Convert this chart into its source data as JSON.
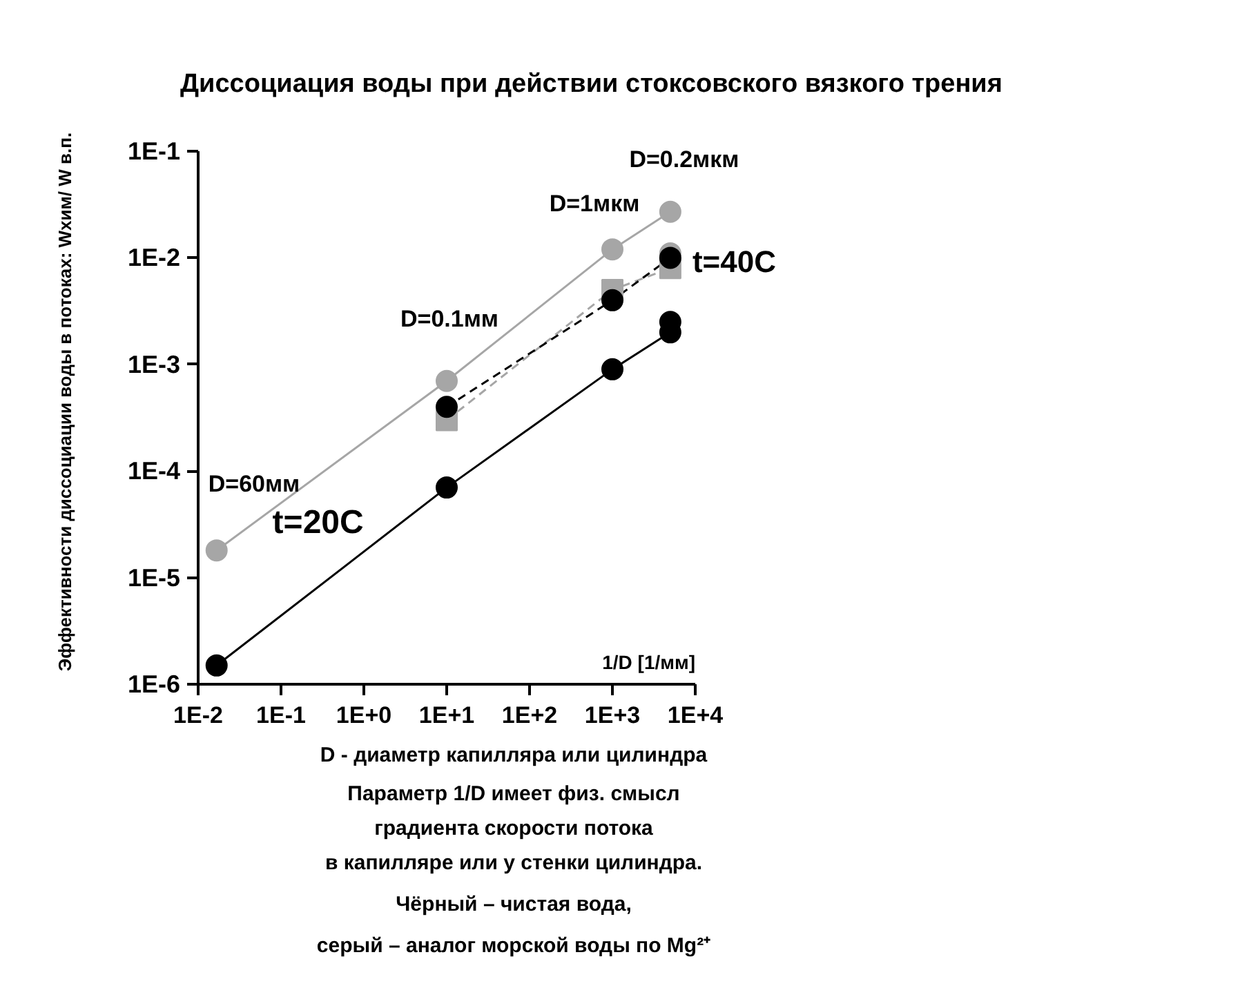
{
  "chart_data": {
    "type": "line",
    "title": "Диссоциация воды при действии стоксовского вязкого трения",
    "xlabel": "1/D [1/мм]",
    "ylabel": "Эффективности диссоциации воды в потоках: Wхим/ W в.п.",
    "log": "xy",
    "grid": false,
    "marker": "circle",
    "line_style": "solid",
    "xlim": [
      0.01,
      10000
    ],
    "ylim": [
      1e-06,
      0.1
    ],
    "xticks": [
      {
        "value": 0.01,
        "label": "1E-2"
      },
      {
        "value": 0.1,
        "label": "1E-1"
      },
      {
        "value": 1,
        "label": "1E+0"
      },
      {
        "value": 10,
        "label": "1E+1"
      },
      {
        "value": 100,
        "label": "1E+2"
      },
      {
        "value": 1000,
        "label": "1E+3"
      },
      {
        "value": 10000,
        "label": "1E+4"
      }
    ],
    "yticks": [
      {
        "value": 1e-06,
        "label": "1E-6"
      },
      {
        "value": 1e-05,
        "label": "1E-5"
      },
      {
        "value": 0.0001,
        "label": "1E-4"
      },
      {
        "value": 0.001,
        "label": "1E-3"
      },
      {
        "value": 0.01,
        "label": "1E-2"
      },
      {
        "value": 0.1,
        "label": "1E-1"
      }
    ],
    "series": [
      {
        "color": "#a6a6a6",
        "x": [
          0.0167,
          10,
          1000,
          5000
        ],
        "values": [
          1.8e-05,
          0.0007,
          0.012,
          0.027
        ]
      },
      {
        "color": "#000000",
        "x": [
          0.0167,
          10,
          1000,
          5000
        ],
        "values": [
          1.5e-06,
          7e-05,
          0.0009,
          0.002
        ]
      },
      {
        "type": "scatter",
        "color": "#a6a6a6",
        "x": [
          5000
        ],
        "values": [
          0.011
        ]
      },
      {
        "color": "#a6a6a6",
        "line_style": "dashed",
        "marker": "square",
        "x": [
          10,
          1000,
          5000
        ],
        "values": [
          0.0003,
          0.005,
          0.008
        ]
      },
      {
        "color": "#000000",
        "line_style": "dashed",
        "x": [
          10,
          1000,
          5000
        ],
        "values": [
          0.0004,
          0.004,
          0.01
        ]
      },
      {
        "type": "scatter",
        "color": "#000000",
        "x": [
          5000
        ],
        "values": [
          0.0025
        ]
      }
    ],
    "annotations": [
      {
        "text": "D=60мм",
        "x": 0.0167,
        "y": 1.8e-05
      },
      "t=20C",
      {
        "text": "D=0.1мм",
        "x": 10,
        "y": 0.0007
      },
      {
        "text": "D=1мкм",
        "x": 1000,
        "y": 0.012
      },
      {
        "text": "D=0.2мкм",
        "x": 5000,
        "y": 0.027
      },
      {
        "text": "t=40C",
        "x": 5000,
        "y": 0.01
      },
      "D - диаметр капилляра или цилиндра",
      "Параметр 1/D имеет физ. смысл",
      "градиента скорости потока",
      "в капилляре или у стенки цилиндра.",
      "Чёрный – чистая вода,",
      "серый – аналог морской воды по Mg²⁺"
    ]
  }
}
